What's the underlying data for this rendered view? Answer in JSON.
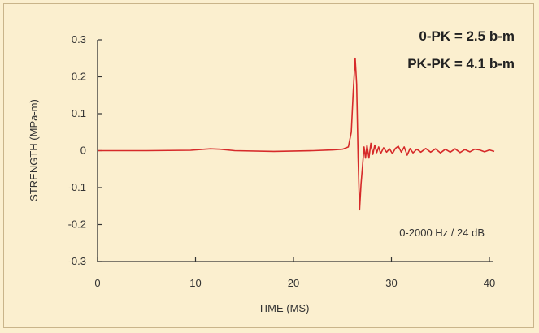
{
  "chart_data": {
    "type": "line",
    "title": "",
    "xlabel": "TIME (MS)",
    "ylabel": "STRENGTH (MPa-m)",
    "xlim": [
      0,
      40
    ],
    "ylim": [
      -0.3,
      0.3
    ],
    "x_ticks": [
      "0",
      "10",
      "20",
      "30",
      "40"
    ],
    "y_ticks": [
      "0.3",
      "0.2",
      "0.1",
      "0",
      "-0.1",
      "-0.2",
      "-0.3"
    ],
    "grid": false,
    "annotations": {
      "zero_peak": "0-PK = 2.5 b-m",
      "peak_peak": "PK-PK = 4.1 b-m",
      "filter": "0-2000 Hz / 24 dB"
    },
    "line_color": "#d62a2a",
    "series": [
      {
        "x": [
          0,
          5,
          9.5,
          10.5,
          11.5,
          12.5,
          14,
          18,
          22,
          24,
          25,
          25.6,
          25.9,
          26.1,
          26.3,
          26.45,
          26.6,
          26.75,
          26.9,
          27.05,
          27.2,
          27.35,
          27.5,
          27.7,
          27.9,
          28.1,
          28.3,
          28.5,
          28.7,
          28.9,
          29.2,
          29.5,
          29.8,
          30.1,
          30.4,
          30.7,
          31,
          31.3,
          31.6,
          31.9,
          32.2,
          32.6,
          33,
          33.5,
          34,
          34.5,
          35,
          35.5,
          36,
          36.5,
          37,
          37.5,
          38,
          38.5,
          39,
          39.5,
          40,
          40.5
        ],
        "y": [
          0,
          0,
          0.001,
          0.003,
          0.005,
          0.004,
          0,
          -0.002,
          0,
          0.002,
          0.004,
          0.01,
          0.05,
          0.16,
          0.25,
          0.18,
          -0.02,
          -0.16,
          -0.09,
          -0.04,
          0.01,
          -0.02,
          0.015,
          -0.02,
          0.02,
          -0.01,
          0.015,
          -0.005,
          0.01,
          -0.008,
          0.008,
          -0.004,
          0.005,
          -0.008,
          0.006,
          0.012,
          -0.004,
          0.01,
          -0.012,
          0.006,
          -0.006,
          0.004,
          -0.004,
          0.006,
          -0.004,
          0.005,
          -0.006,
          0.004,
          -0.004,
          0.005,
          -0.005,
          0.003,
          -0.003,
          0.004,
          0.002,
          -0.003,
          0.002,
          -0.002
        ]
      }
    ]
  }
}
